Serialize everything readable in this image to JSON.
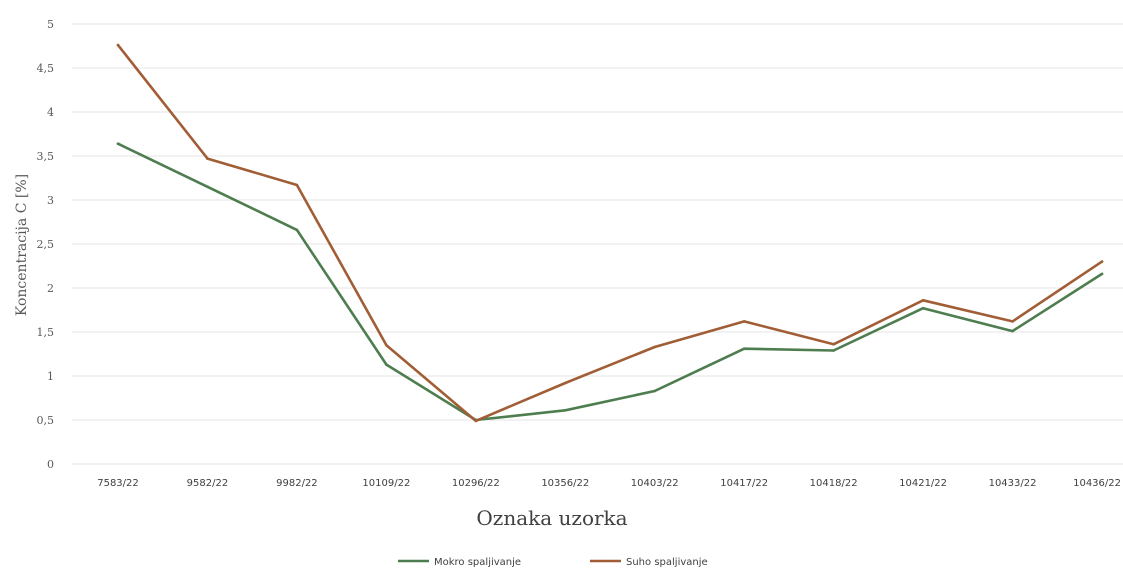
{
  "chart_data": {
    "type": "line",
    "title": "",
    "xlabel": "Oznaka uzorka",
    "ylabel": "Koncentracija C [%]",
    "categories": [
      "7583/22",
      "9582/22",
      "9982/22",
      "10109/22",
      "10296/22",
      "10356/22",
      "10403/22",
      "10417/22",
      "10418/22",
      "10421/22",
      "10433/22",
      "10436/22"
    ],
    "ylim": [
      0,
      5
    ],
    "yticks": [
      "0",
      "0,5",
      "1",
      "1,5",
      "2",
      "2,5",
      "3",
      "3,5",
      "4",
      "4,5",
      "5"
    ],
    "grid": true,
    "legend_position": "bottom",
    "series": [
      {
        "name": "Mokro spaljivanje",
        "color": "#4e7d4f",
        "values": [
          3.64,
          3.15,
          2.66,
          1.13,
          0.5,
          0.61,
          0.83,
          1.31,
          1.29,
          1.77,
          1.51,
          2.16
        ]
      },
      {
        "name": "Suho spaljivanje",
        "color": "#a15e36",
        "values": [
          4.76,
          3.47,
          3.17,
          1.35,
          0.49,
          0.92,
          1.33,
          1.62,
          1.36,
          1.86,
          1.62,
          2.3
        ]
      }
    ]
  }
}
